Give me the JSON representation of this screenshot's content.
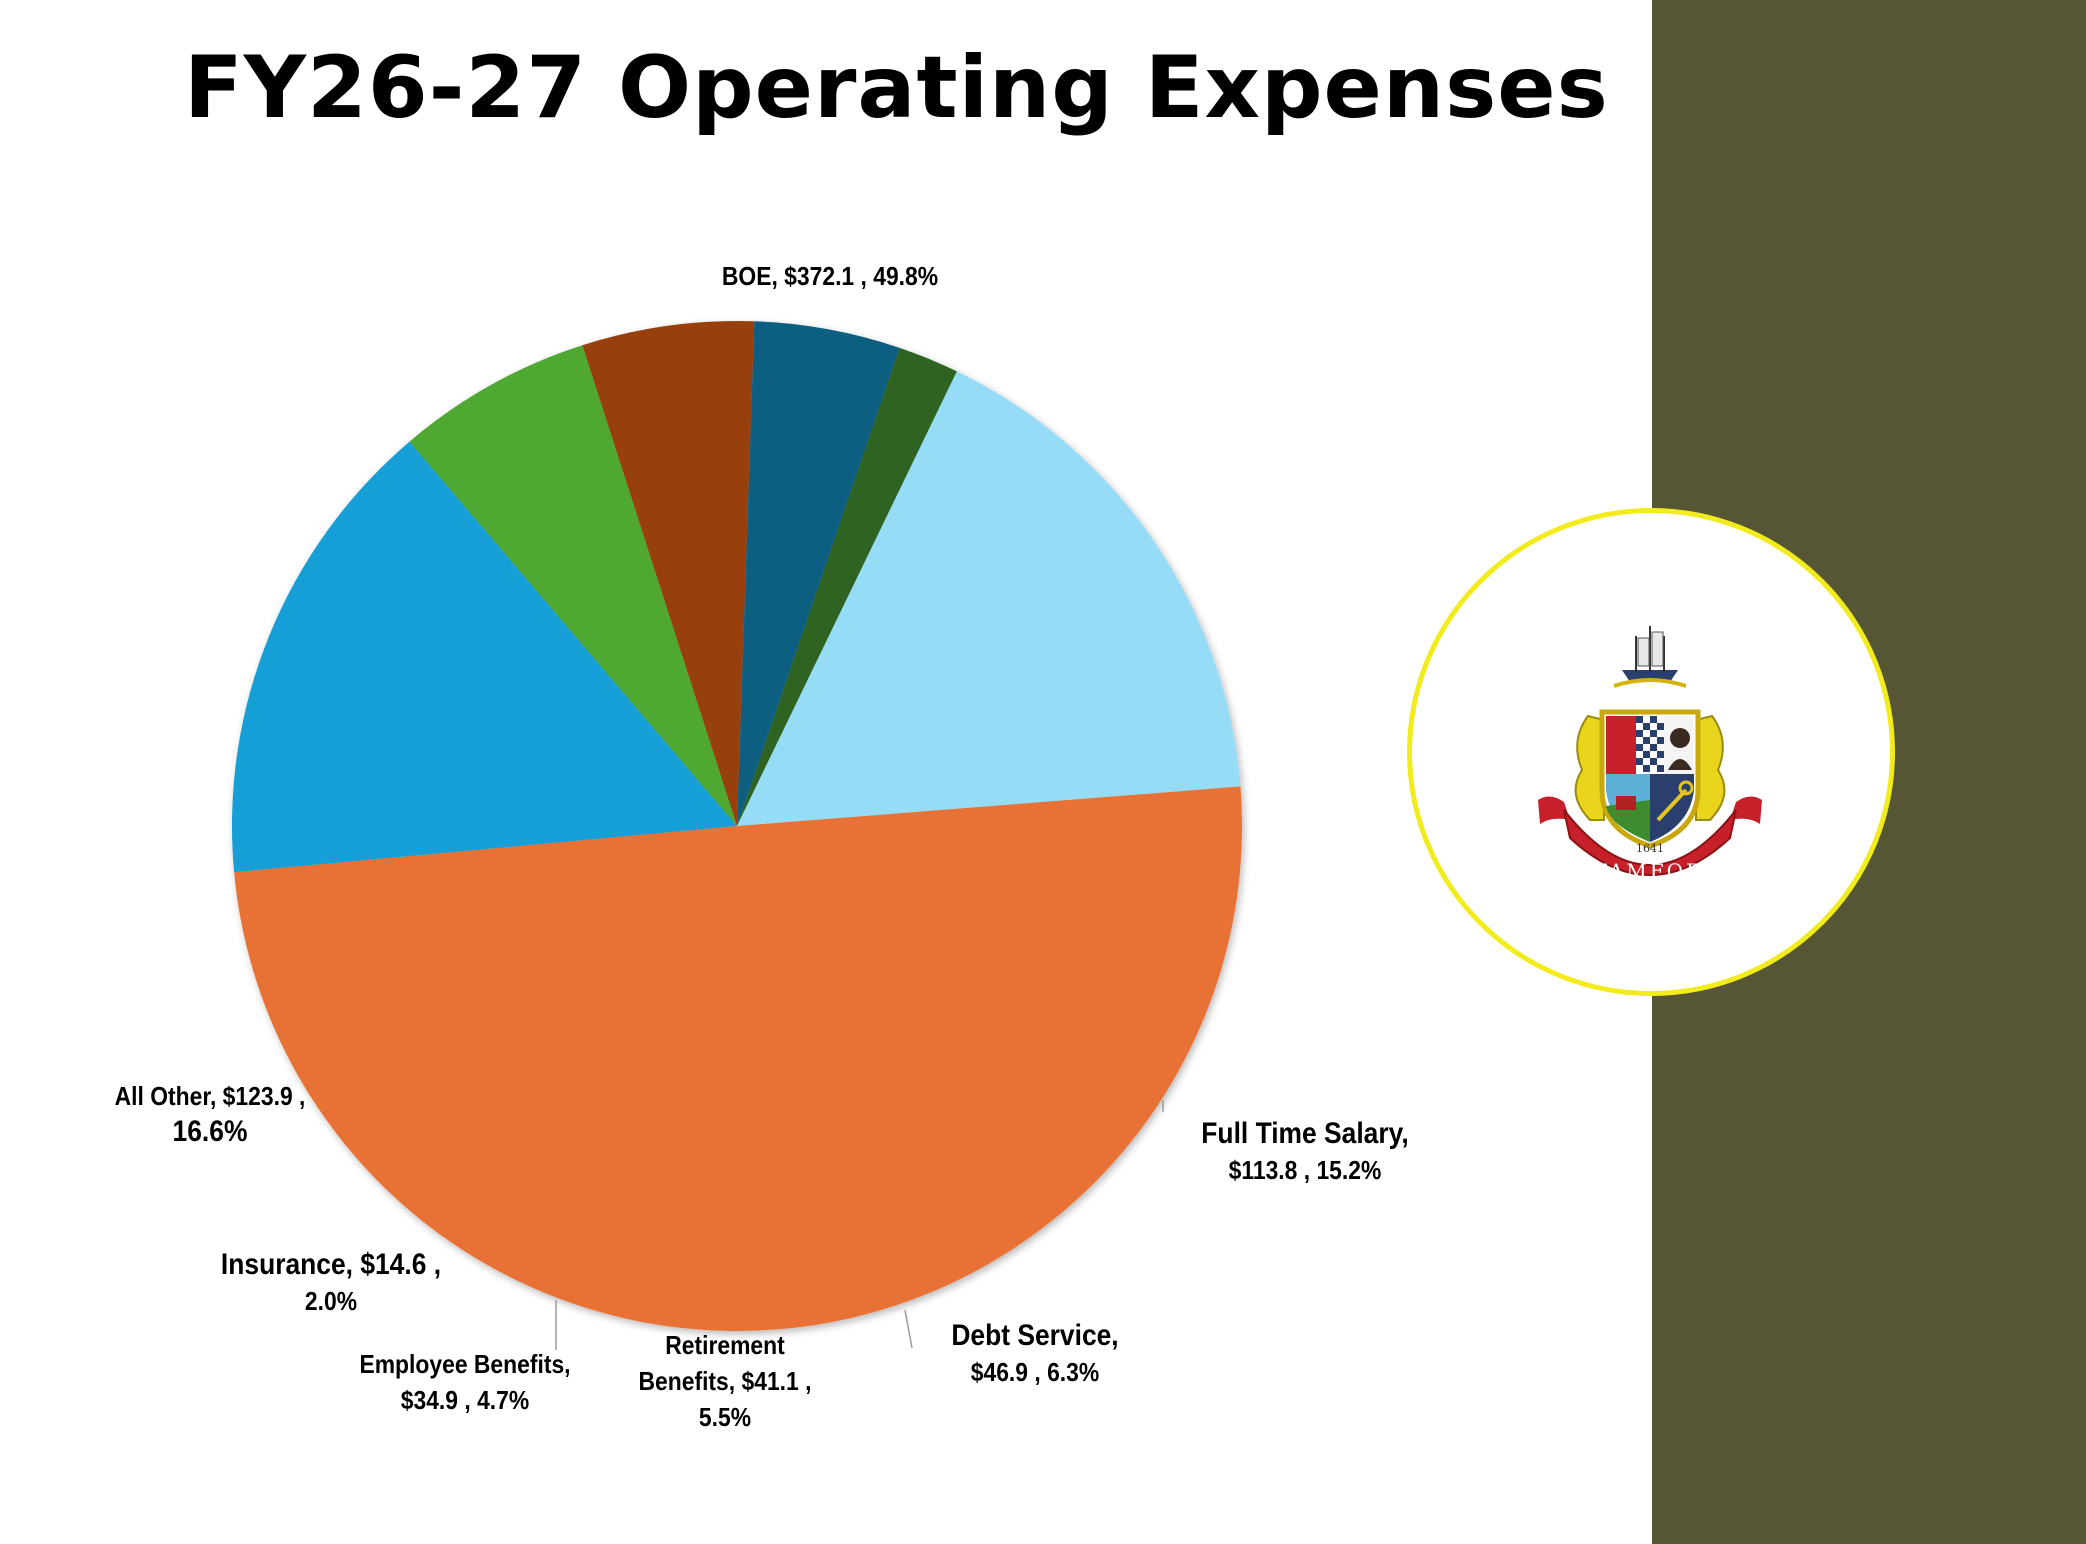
{
  "title": "FY26-27 Operating Expenses",
  "colors": {
    "side_band": "#565634",
    "seal_ring": "#f2ec1c"
  },
  "seal": {
    "text": "STAMFORD",
    "year": "1641"
  },
  "chart_data": {
    "type": "pie",
    "unit": "$",
    "slices": [
      {
        "name": "BOE",
        "value": 372.1,
        "percent": 49.8,
        "color": "#e87234",
        "label": {
          "line1": "BOE,  $372.1 , 49.8%"
        }
      },
      {
        "name": "Full Time Salary",
        "value": 113.8,
        "percent": 15.2,
        "color": "#129ed6",
        "label": {
          "line1": "Full Time Salary,",
          "line2": "$113.8 , 15.2%"
        }
      },
      {
        "name": "Debt Service",
        "value": 46.9,
        "percent": 6.3,
        "color": "#50a830",
        "label": {
          "line1": "Debt Service,",
          "line2": "$46.9 , 6.3%"
        }
      },
      {
        "name": "Retirement Benefits",
        "value": 41.1,
        "percent": 5.5,
        "color": "#984110",
        "label": {
          "line1": "Retirement",
          "line2": "Benefits,  $41.1 ,",
          "line3": "5.5%"
        }
      },
      {
        "name": "Employee Benefits",
        "value": 34.9,
        "percent": 4.7,
        "color": "#0b5f82",
        "label": {
          "line1": "Employee Benefits,",
          "line2": "$34.9 , 4.7%"
        }
      },
      {
        "name": "Insurance",
        "value": 14.6,
        "percent": 2.0,
        "color": "#2e6322",
        "label": {
          "line1": "Insurance,  $14.6 ,",
          "line2": "2.0%"
        }
      },
      {
        "name": "All Other",
        "value": 123.9,
        "percent": 16.6,
        "color": "#96dcf6",
        "label": {
          "line1": "All Other,  $123.9 ,",
          "line2": "16.6%"
        }
      }
    ]
  }
}
